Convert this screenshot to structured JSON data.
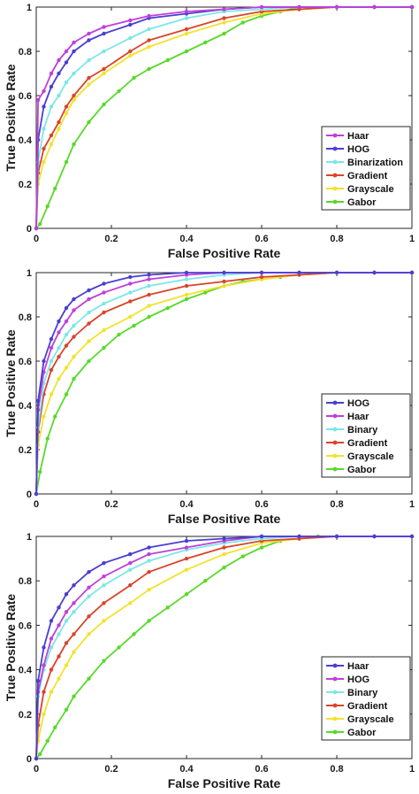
{
  "chart_data": [
    {
      "type": "line",
      "xlabel": "False Positive Rate",
      "ylabel": "True Positive Rate",
      "xlim": [
        0,
        1
      ],
      "ylim": [
        0,
        1
      ],
      "xticks": [
        "0",
        "0.2",
        "0.4",
        "0.6",
        "0.8",
        "1"
      ],
      "yticks": [
        "0",
        "0.2",
        "0.4",
        "0.6",
        "0.8",
        "1"
      ],
      "grid": false,
      "legend_position": "bottom-right",
      "series": [
        {
          "name": "Haar",
          "color": "#bf40d9",
          "x": [
            0,
            0.005,
            0.02,
            0.04,
            0.06,
            0.08,
            0.1,
            0.14,
            0.18,
            0.25,
            0.3,
            0.4,
            0.5,
            0.6,
            0.7,
            0.8,
            0.9,
            1
          ],
          "y": [
            0,
            0.58,
            0.62,
            0.7,
            0.76,
            0.8,
            0.84,
            0.88,
            0.91,
            0.94,
            0.96,
            0.98,
            0.99,
            1,
            1,
            1,
            1,
            1
          ]
        },
        {
          "name": "HOG",
          "color": "#4a3fd1",
          "x": [
            0,
            0.005,
            0.02,
            0.04,
            0.06,
            0.08,
            0.1,
            0.14,
            0.18,
            0.25,
            0.3,
            0.4,
            0.5,
            0.6,
            0.7,
            0.8,
            0.9,
            1
          ],
          "y": [
            0,
            0.4,
            0.55,
            0.64,
            0.7,
            0.75,
            0.8,
            0.85,
            0.88,
            0.92,
            0.95,
            0.97,
            0.99,
            1,
            1,
            1,
            1,
            1
          ]
        },
        {
          "name": "Binarization",
          "color": "#7de6e6",
          "x": [
            0,
            0.005,
            0.02,
            0.04,
            0.06,
            0.08,
            0.1,
            0.14,
            0.18,
            0.25,
            0.3,
            0.4,
            0.5,
            0.6,
            0.7,
            0.8,
            0.9,
            1
          ],
          "y": [
            0,
            0.3,
            0.45,
            0.55,
            0.6,
            0.66,
            0.7,
            0.76,
            0.8,
            0.86,
            0.9,
            0.95,
            0.98,
            0.99,
            1,
            1,
            1,
            1
          ]
        },
        {
          "name": "Gradient",
          "color": "#d9442a",
          "x": [
            0,
            0.005,
            0.02,
            0.04,
            0.06,
            0.08,
            0.1,
            0.14,
            0.18,
            0.25,
            0.3,
            0.4,
            0.5,
            0.6,
            0.7,
            0.8,
            0.9,
            1
          ],
          "y": [
            0,
            0.25,
            0.36,
            0.42,
            0.48,
            0.55,
            0.6,
            0.68,
            0.72,
            0.8,
            0.85,
            0.9,
            0.95,
            0.98,
            0.99,
            1,
            1,
            1
          ]
        },
        {
          "name": "Grayscale",
          "color": "#f2e22e",
          "x": [
            0,
            0.005,
            0.02,
            0.04,
            0.06,
            0.08,
            0.1,
            0.14,
            0.18,
            0.25,
            0.3,
            0.4,
            0.5,
            0.6,
            0.7,
            0.8,
            0.9,
            1
          ],
          "y": [
            0,
            0.2,
            0.3,
            0.38,
            0.45,
            0.52,
            0.58,
            0.65,
            0.7,
            0.78,
            0.82,
            0.88,
            0.93,
            0.97,
            0.99,
            1,
            1,
            1
          ]
        },
        {
          "name": "Gabor",
          "color": "#59d92a",
          "x": [
            0,
            0.01,
            0.03,
            0.05,
            0.08,
            0.1,
            0.14,
            0.18,
            0.22,
            0.26,
            0.3,
            0.35,
            0.4,
            0.45,
            0.5,
            0.55,
            0.6,
            0.65,
            0.7,
            0.8,
            0.9,
            1
          ],
          "y": [
            0,
            0.02,
            0.1,
            0.18,
            0.3,
            0.38,
            0.48,
            0.56,
            0.62,
            0.68,
            0.72,
            0.76,
            0.8,
            0.84,
            0.88,
            0.93,
            0.96,
            0.98,
            1,
            1,
            1,
            1
          ]
        }
      ]
    },
    {
      "type": "line",
      "xlabel": "False Positive Rate",
      "ylabel": "True Positive Rate",
      "xlim": [
        0,
        1
      ],
      "ylim": [
        0,
        1
      ],
      "xticks": [
        "0",
        "0.2",
        "0.4",
        "0.6",
        "0.8",
        "1"
      ],
      "yticks": [
        "0",
        "0.2",
        "0.4",
        "0.6",
        "0.8",
        "1"
      ],
      "grid": false,
      "legend_position": "bottom-right",
      "series": [
        {
          "name": "HOG",
          "color": "#4a3fd1",
          "x": [
            0,
            0.005,
            0.02,
            0.04,
            0.06,
            0.08,
            0.1,
            0.14,
            0.18,
            0.25,
            0.3,
            0.4,
            0.5,
            0.6,
            0.7,
            0.8,
            0.9,
            1
          ],
          "y": [
            0,
            0.42,
            0.6,
            0.7,
            0.78,
            0.84,
            0.88,
            0.92,
            0.95,
            0.98,
            0.99,
            1,
            1,
            1,
            1,
            1,
            1,
            1
          ]
        },
        {
          "name": "Haar",
          "color": "#bf40d9",
          "x": [
            0,
            0.005,
            0.02,
            0.04,
            0.06,
            0.08,
            0.1,
            0.14,
            0.18,
            0.25,
            0.3,
            0.4,
            0.5,
            0.6,
            0.7,
            0.8,
            0.9,
            1
          ],
          "y": [
            0,
            0.38,
            0.55,
            0.66,
            0.73,
            0.78,
            0.83,
            0.88,
            0.91,
            0.95,
            0.97,
            0.99,
            1,
            1,
            1,
            1,
            1,
            1
          ]
        },
        {
          "name": "Binary",
          "color": "#7de6e6",
          "x": [
            0,
            0.005,
            0.02,
            0.04,
            0.06,
            0.08,
            0.1,
            0.14,
            0.18,
            0.25,
            0.3,
            0.4,
            0.5,
            0.6,
            0.7,
            0.8,
            0.9,
            1
          ],
          "y": [
            0,
            0.3,
            0.5,
            0.6,
            0.66,
            0.72,
            0.76,
            0.82,
            0.86,
            0.91,
            0.94,
            0.97,
            0.99,
            1,
            1,
            1,
            1,
            1
          ]
        },
        {
          "name": "Gradient",
          "color": "#d9442a",
          "x": [
            0,
            0.005,
            0.02,
            0.04,
            0.06,
            0.08,
            0.1,
            0.14,
            0.18,
            0.25,
            0.3,
            0.4,
            0.5,
            0.6,
            0.7,
            0.8,
            0.9,
            1
          ],
          "y": [
            0,
            0.28,
            0.45,
            0.56,
            0.62,
            0.67,
            0.71,
            0.77,
            0.82,
            0.87,
            0.9,
            0.94,
            0.96,
            0.98,
            0.99,
            1,
            1,
            1
          ]
        },
        {
          "name": "Grayscale",
          "color": "#f2e22e",
          "x": [
            0,
            0.005,
            0.02,
            0.04,
            0.06,
            0.08,
            0.1,
            0.14,
            0.18,
            0.25,
            0.3,
            0.4,
            0.5,
            0.6,
            0.7,
            0.8,
            0.9,
            1
          ],
          "y": [
            0,
            0.22,
            0.35,
            0.45,
            0.52,
            0.57,
            0.62,
            0.69,
            0.74,
            0.8,
            0.85,
            0.9,
            0.94,
            0.97,
            0.99,
            1,
            1,
            1
          ]
        },
        {
          "name": "Gabor",
          "color": "#59d92a",
          "x": [
            0,
            0.01,
            0.03,
            0.05,
            0.08,
            0.1,
            0.14,
            0.18,
            0.22,
            0.26,
            0.3,
            0.35,
            0.4,
            0.45,
            0.5,
            0.55,
            0.6,
            0.65,
            0.7,
            0.8,
            0.9,
            1
          ],
          "y": [
            0,
            0.1,
            0.25,
            0.35,
            0.45,
            0.52,
            0.6,
            0.66,
            0.72,
            0.76,
            0.8,
            0.84,
            0.88,
            0.91,
            0.94,
            0.96,
            0.97,
            0.98,
            0.99,
            1,
            1,
            1
          ]
        }
      ]
    },
    {
      "type": "line",
      "xlabel": "False Positive Rate",
      "ylabel": "True Positive Rate",
      "xlim": [
        0,
        1
      ],
      "ylim": [
        0,
        1
      ],
      "xticks": [
        "0",
        "0.2",
        "0.4",
        "0.6",
        "0.8",
        "1"
      ],
      "yticks": [
        "0",
        "0.2",
        "0.4",
        "0.6",
        "0.8",
        "1"
      ],
      "grid": false,
      "legend_position": "bottom-right",
      "series": [
        {
          "name": "Haar",
          "color": "#4a3fd1",
          "x": [
            0,
            0.005,
            0.02,
            0.04,
            0.06,
            0.08,
            0.1,
            0.14,
            0.18,
            0.25,
            0.3,
            0.4,
            0.5,
            0.6,
            0.7,
            0.8,
            0.9,
            1
          ],
          "y": [
            0,
            0.35,
            0.5,
            0.62,
            0.68,
            0.74,
            0.78,
            0.84,
            0.88,
            0.92,
            0.95,
            0.98,
            0.99,
            1,
            1,
            1,
            1,
            1
          ]
        },
        {
          "name": "HOG",
          "color": "#bf40d9",
          "x": [
            0,
            0.005,
            0.02,
            0.04,
            0.06,
            0.08,
            0.1,
            0.14,
            0.18,
            0.25,
            0.3,
            0.4,
            0.5,
            0.6,
            0.7,
            0.8,
            0.9,
            1
          ],
          "y": [
            0,
            0.3,
            0.42,
            0.54,
            0.6,
            0.66,
            0.7,
            0.77,
            0.82,
            0.88,
            0.92,
            0.95,
            0.98,
            1,
            1,
            1,
            1,
            1
          ]
        },
        {
          "name": "Binary",
          "color": "#7de6e6",
          "x": [
            0,
            0.005,
            0.02,
            0.04,
            0.06,
            0.08,
            0.1,
            0.14,
            0.18,
            0.25,
            0.3,
            0.4,
            0.5,
            0.6,
            0.7,
            0.8,
            0.9,
            1
          ],
          "y": [
            0,
            0.28,
            0.4,
            0.5,
            0.56,
            0.62,
            0.66,
            0.73,
            0.78,
            0.85,
            0.89,
            0.94,
            0.97,
            0.99,
            1,
            1,
            1,
            1
          ]
        },
        {
          "name": "Gradient",
          "color": "#d9442a",
          "x": [
            0,
            0.005,
            0.02,
            0.04,
            0.06,
            0.08,
            0.1,
            0.14,
            0.18,
            0.25,
            0.3,
            0.4,
            0.5,
            0.6,
            0.7,
            0.8,
            0.9,
            1
          ],
          "y": [
            0,
            0.15,
            0.3,
            0.4,
            0.46,
            0.52,
            0.56,
            0.64,
            0.7,
            0.78,
            0.84,
            0.9,
            0.95,
            0.98,
            0.99,
            1,
            1,
            1
          ]
        },
        {
          "name": "Grayscale",
          "color": "#f2e22e",
          "x": [
            0,
            0.005,
            0.02,
            0.04,
            0.06,
            0.08,
            0.1,
            0.14,
            0.18,
            0.25,
            0.3,
            0.4,
            0.5,
            0.6,
            0.7,
            0.8,
            0.9,
            1
          ],
          "y": [
            0,
            0.08,
            0.2,
            0.3,
            0.36,
            0.42,
            0.48,
            0.56,
            0.62,
            0.7,
            0.76,
            0.85,
            0.92,
            0.97,
            0.99,
            1,
            1,
            1
          ]
        },
        {
          "name": "Gabor",
          "color": "#59d92a",
          "x": [
            0,
            0.01,
            0.03,
            0.05,
            0.08,
            0.1,
            0.14,
            0.18,
            0.22,
            0.26,
            0.3,
            0.35,
            0.4,
            0.45,
            0.5,
            0.55,
            0.6,
            0.65,
            0.7,
            0.75,
            0.8,
            0.9,
            1
          ],
          "y": [
            0,
            0.02,
            0.08,
            0.14,
            0.22,
            0.28,
            0.36,
            0.44,
            0.5,
            0.56,
            0.62,
            0.68,
            0.74,
            0.8,
            0.86,
            0.91,
            0.95,
            0.98,
            0.99,
            1,
            1,
            1,
            1
          ]
        }
      ]
    }
  ]
}
